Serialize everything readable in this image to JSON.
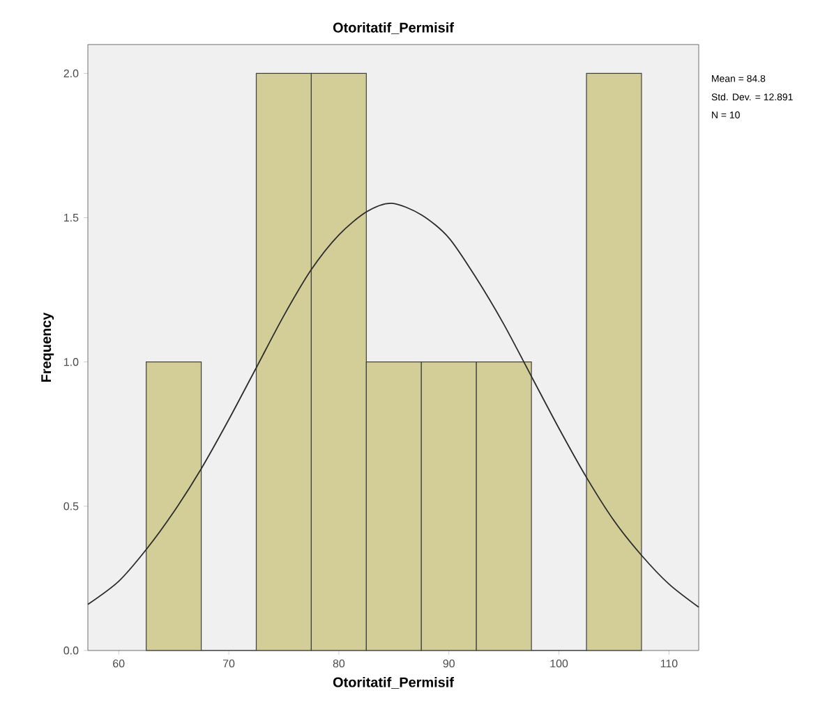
{
  "chart_data": {
    "type": "histogram",
    "title": "Otoritatif_Permisif",
    "xlabel": "Otoritatif_Permisif",
    "ylabel": "Frequency",
    "annotations": [
      "Mean = 84.8",
      "Std. Dev. = 12.891",
      "N = 10"
    ],
    "xlim": [
      57.2,
      112.7
    ],
    "ylim": [
      0,
      2.1
    ],
    "xticks": [
      60,
      70,
      80,
      90,
      100,
      110
    ],
    "yticks": [
      {
        "value": 0,
        "label": "0.0"
      },
      {
        "value": 0.5,
        "label": "0.5"
      },
      {
        "value": 1,
        "label": "1.0"
      },
      {
        "value": 1.5,
        "label": "1.5"
      },
      {
        "value": 2,
        "label": "2.0"
      }
    ],
    "grid": false,
    "series": [
      {
        "color": "#d3ce98",
        "bins": [
          62.5,
          67.5,
          72.5,
          77.5,
          82.5,
          87.5,
          92.5,
          97.5,
          102.5,
          107.5
        ],
        "values": [
          1,
          0,
          2,
          2,
          1,
          1,
          1,
          0,
          2
        ]
      },
      {
        "type": "line",
        "color": "#2b2b2b",
        "x": [
          57.2,
          60,
          62.5,
          65,
          67.5,
          70,
          72.5,
          75,
          77.5,
          80,
          82.5,
          84.8,
          87.5,
          90,
          92.5,
          95,
          97.5,
          100,
          102.5,
          105,
          107.5,
          110,
          112.7
        ],
        "values": [
          0.16,
          0.24,
          0.35,
          0.48,
          0.63,
          0.8,
          0.98,
          1.16,
          1.32,
          1.44,
          1.52,
          1.55,
          1.51,
          1.43,
          1.29,
          1.13,
          0.95,
          0.77,
          0.6,
          0.45,
          0.33,
          0.23,
          0.15
        ]
      }
    ]
  }
}
